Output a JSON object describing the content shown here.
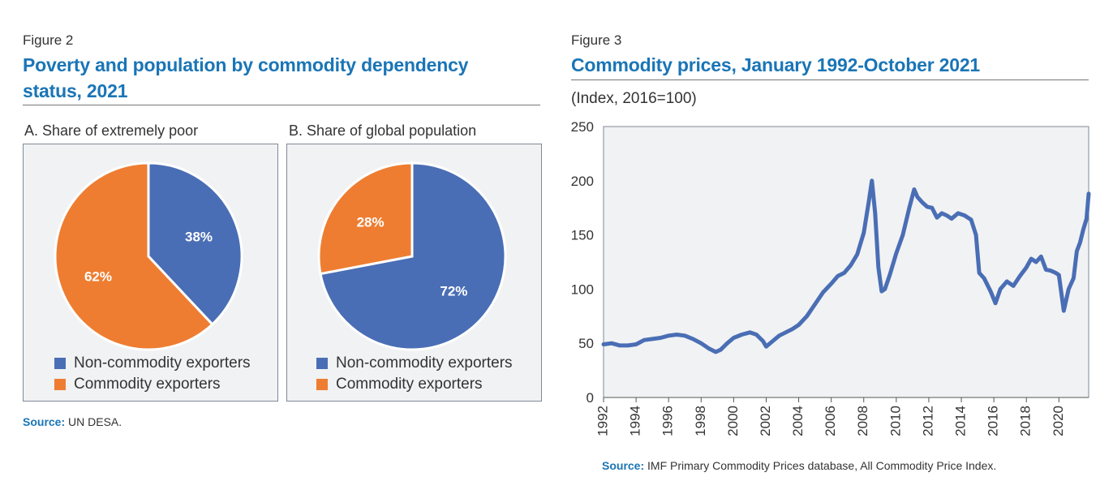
{
  "figure2": {
    "label": "Figure 2",
    "title_line1": "Poverty and population by commodity dependency",
    "title_line2": "status, 2021",
    "source_label": "Source:",
    "source_text": " UN DESA.",
    "legend": [
      {
        "label": "Non-commodity exporters",
        "color": "#4a6eb5"
      },
      {
        "label": "Commodity exporters",
        "color": "#ee7d31"
      }
    ]
  },
  "figure3": {
    "label": "Figure 3",
    "title": "Commodity prices, January 1992-October 2021",
    "subtitle": "(Index, 2016=100)",
    "source_label": "Source:",
    "source_text": " IMF Primary Commodity Prices database, All Commodity Price Index."
  },
  "colors": {
    "title_blue": "#1a75b6",
    "series_blue": "#4a6eb5",
    "orange": "#ee7d31",
    "panel_bg": "#f1f2f3"
  },
  "chart_data": [
    {
      "type": "pie",
      "title": "A. Share of extremely poor",
      "categories": [
        "Non-commodity exporters",
        "Commodity exporters"
      ],
      "values": [
        38,
        62
      ],
      "labels": [
        "38%",
        "62%"
      ],
      "colors": [
        "#4a6eb5",
        "#ee7d31"
      ],
      "legend": "bottom-center"
    },
    {
      "type": "pie",
      "title": "B. Share of global population",
      "categories": [
        "Non-commodity exporters",
        "Commodity exporters"
      ],
      "values": [
        72,
        28
      ],
      "labels": [
        "72%",
        "28%"
      ],
      "colors": [
        "#4a6eb5",
        "#ee7d31"
      ],
      "legend": "bottom-center"
    },
    {
      "type": "line",
      "ylim": [
        0,
        250
      ],
      "yticks": [
        0,
        50,
        100,
        150,
        200,
        250
      ],
      "xlim": [
        1992,
        2021.83
      ],
      "xticks": [
        1992,
        1994,
        1996,
        1998,
        2000,
        2002,
        2004,
        2006,
        2008,
        2010,
        2012,
        2014,
        2016,
        2018,
        2020
      ],
      "grid": false,
      "color": "#4a6eb5",
      "x": [
        1992.0,
        1992.5,
        1993.0,
        1993.5,
        1994.0,
        1994.5,
        1995.0,
        1995.5,
        1996.0,
        1996.5,
        1997.0,
        1997.5,
        1998.0,
        1998.5,
        1998.9,
        1999.2,
        1999.6,
        2000.0,
        2000.5,
        2001.0,
        2001.4,
        2001.8,
        2002.0,
        2002.4,
        2002.8,
        2003.2,
        2003.6,
        2004.0,
        2004.5,
        2005.0,
        2005.5,
        2006.0,
        2006.4,
        2006.8,
        2007.2,
        2007.6,
        2008.0,
        2008.3,
        2008.5,
        2008.7,
        2008.9,
        2009.1,
        2009.3,
        2009.6,
        2010.0,
        2010.4,
        2010.8,
        2011.1,
        2011.3,
        2011.6,
        2011.9,
        2012.2,
        2012.5,
        2012.8,
        2013.1,
        2013.4,
        2013.8,
        2014.2,
        2014.6,
        2014.9,
        2015.1,
        2015.4,
        2015.8,
        2016.1,
        2016.4,
        2016.8,
        2017.2,
        2017.6,
        2018.0,
        2018.3,
        2018.6,
        2018.9,
        2019.2,
        2019.5,
        2019.8,
        2020.0,
        2020.3,
        2020.6,
        2020.9,
        2021.1,
        2021.3,
        2021.5,
        2021.7,
        2021.83
      ],
      "y": [
        49,
        50,
        48,
        48,
        49,
        53,
        54,
        55,
        57,
        58,
        57,
        54,
        50,
        45,
        42,
        44,
        50,
        55,
        58,
        60,
        58,
        52,
        47,
        52,
        57,
        60,
        63,
        67,
        75,
        86,
        97,
        105,
        112,
        115,
        122,
        132,
        152,
        180,
        200,
        170,
        120,
        98,
        100,
        113,
        133,
        150,
        175,
        192,
        185,
        180,
        176,
        175,
        166,
        170,
        168,
        165,
        170,
        168,
        164,
        150,
        115,
        110,
        98,
        87,
        100,
        107,
        103,
        112,
        120,
        128,
        125,
        130,
        118,
        117,
        115,
        113,
        80,
        100,
        110,
        135,
        143,
        155,
        165,
        188
      ]
    }
  ]
}
